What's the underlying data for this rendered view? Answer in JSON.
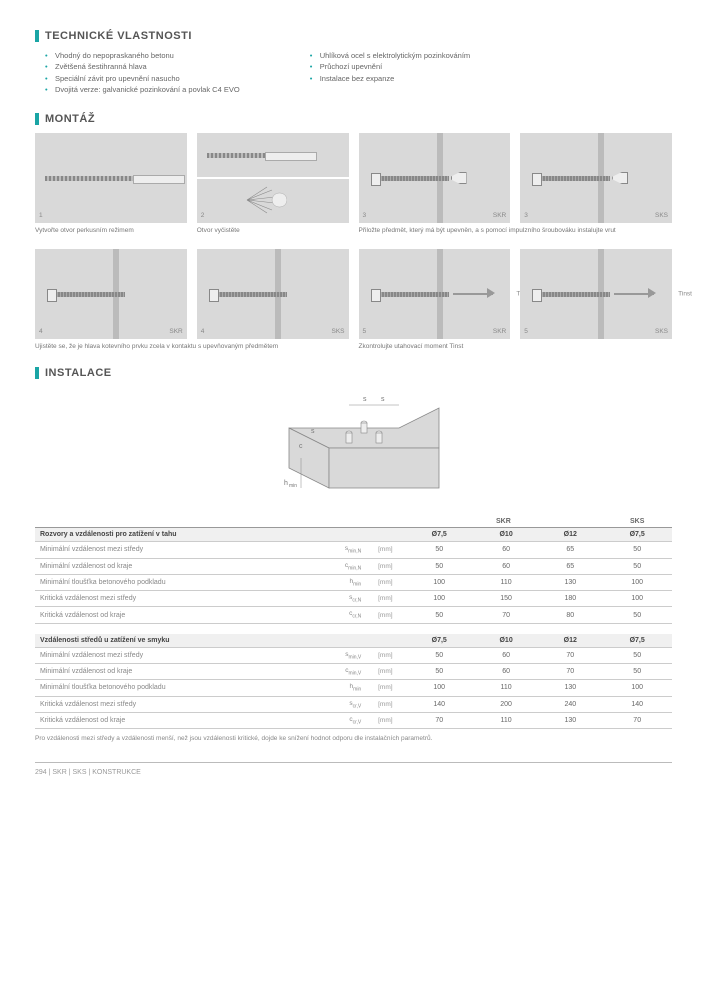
{
  "sections": {
    "tech_props": "TECHNICKÉ VLASTNOSTI",
    "montaz": "MONTÁŽ",
    "instalace": "INSTALACE"
  },
  "tech_props_left": [
    "Vhodný do nepopraskaného betonu",
    "Zvětšená šestihranná hlava",
    "Speciální závit pro upevnění nasucho",
    "Dvojitá verze: galvanické pozinkování a povlak C4 EVO"
  ],
  "tech_props_right": [
    "Uhlíková ocel s elektrolytickým pozinkováním",
    "Průchozí upevnění",
    "Instalace bez expanze"
  ],
  "steps_row1": [
    {
      "num": "1",
      "tag": "",
      "caption": "Vytvořte otvor perkusním režimem"
    },
    {
      "num": "2",
      "tag": "",
      "caption": "Otvor vyčistěte"
    },
    {
      "num": "3",
      "tag": "SKR",
      "caption_wide": true
    },
    {
      "num": "3",
      "tag": "SKS"
    }
  ],
  "caption_row1_wide": "Přiložte předmět, který má být upevněn, a s pomocí impulzního šroubováku instalujte vrut",
  "steps_row2": [
    {
      "num": "4",
      "tag": "SKR"
    },
    {
      "num": "4",
      "tag": "SKS"
    },
    {
      "num": "5",
      "tag": "SKR",
      "side": "Tinst"
    },
    {
      "num": "5",
      "tag": "SKS",
      "side": "Tinst"
    }
  ],
  "caption_row2_left": "Ujistěte se, že je hlava kotevního prvku zcela v kontaktu s upevňovaným předmětem",
  "caption_row2_right": "Zkontrolujte utahovací moment Tinst",
  "diagram_labels": {
    "c": "c",
    "s": "s",
    "hmin": "hmin"
  },
  "table_header_groups": [
    "SKR",
    "SKS"
  ],
  "table1": {
    "title": "Rozvory a vzdálenosti pro zatížení v tahu",
    "cols": [
      "Ø7,5",
      "Ø10",
      "Ø12",
      "Ø7,5"
    ],
    "rows": [
      {
        "label": "Minimální vzdálenost mezi středy",
        "sym": "s",
        "sub": "min,N",
        "unit": "[mm]",
        "vals": [
          "50",
          "60",
          "65",
          "50"
        ]
      },
      {
        "label": "Minimální vzdálenost od kraje",
        "sym": "c",
        "sub": "min,N",
        "unit": "[mm]",
        "vals": [
          "50",
          "60",
          "65",
          "50"
        ]
      },
      {
        "label": "Minimální tloušťka betonového podkladu",
        "sym": "h",
        "sub": "min",
        "unit": "[mm]",
        "vals": [
          "100",
          "110",
          "130",
          "100"
        ]
      },
      {
        "label": "Kritická vzdálenost mezi středy",
        "sym": "s",
        "sub": "cr,N",
        "unit": "[mm]",
        "vals": [
          "100",
          "150",
          "180",
          "100"
        ]
      },
      {
        "label": "Kritická vzdálenost od kraje",
        "sym": "c",
        "sub": "cr,N",
        "unit": "[mm]",
        "vals": [
          "50",
          "70",
          "80",
          "50"
        ]
      }
    ]
  },
  "table2": {
    "title": "Vzdálenosti středů u zatížení ve smyku",
    "cols": [
      "Ø7,5",
      "Ø10",
      "Ø12",
      "Ø7,5"
    ],
    "rows": [
      {
        "label": "Minimální vzdálenost mezi středy",
        "sym": "s",
        "sub": "min,V",
        "unit": "[mm]",
        "vals": [
          "50",
          "60",
          "70",
          "50"
        ]
      },
      {
        "label": "Minimální vzdálenost od kraje",
        "sym": "c",
        "sub": "min,V",
        "unit": "[mm]",
        "vals": [
          "50",
          "60",
          "70",
          "50"
        ]
      },
      {
        "label": "Minimální tloušťka betonového podkladu",
        "sym": "h",
        "sub": "min",
        "unit": "[mm]",
        "vals": [
          "100",
          "110",
          "130",
          "100"
        ]
      },
      {
        "label": "Kritická vzdálenost mezi středy",
        "sym": "s",
        "sub": "cr,V",
        "unit": "[mm]",
        "vals": [
          "140",
          "200",
          "240",
          "140"
        ]
      },
      {
        "label": "Kritická vzdálenost od kraje",
        "sym": "c",
        "sub": "cr,V",
        "unit": "[mm]",
        "vals": [
          "70",
          "110",
          "130",
          "70"
        ]
      }
    ]
  },
  "footnote": "Pro vzdálenosti mezi středy a vzdálenosti menší, než jsou vzdálenosti kritické, dojde ke snížení hodnot odporu dle instalačních parametrů.",
  "footer": "294  |  SKR | SKS  |  KONSTRUKCE"
}
